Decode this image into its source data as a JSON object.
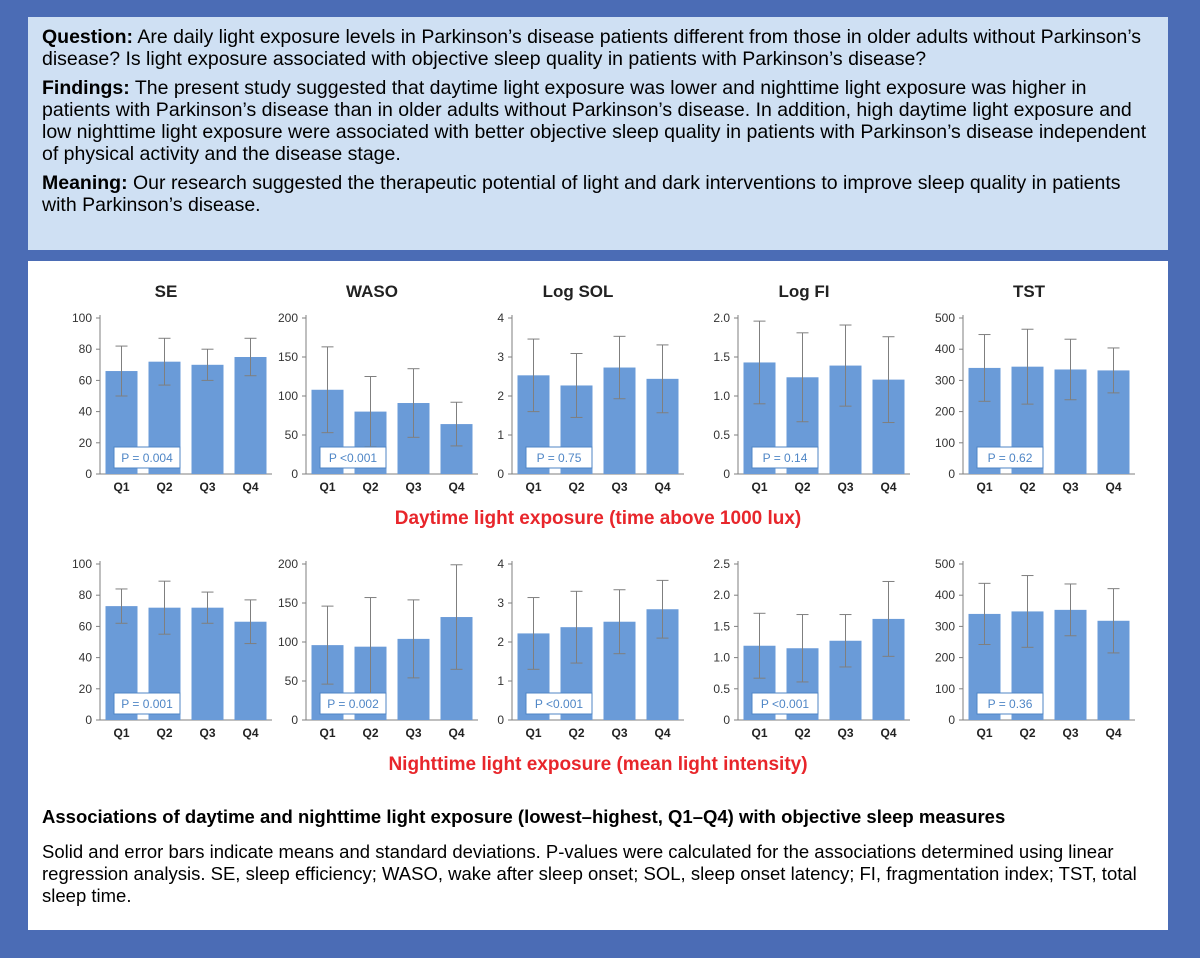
{
  "summary": {
    "question_label": "Question:",
    "question_text": "Are daily light exposure levels in Parkinson’s disease patients different from those in older adults without Parkinson’s disease? Is light exposure associated with objective sleep quality in patients with Parkinson’s disease?",
    "findings_label": "Findings:",
    "findings_text": "The present study suggested that daytime light exposure was lower and nighttime light exposure was higher in patients with Parkinson’s disease than in older adults without Parkinson’s disease. In addition, high daytime light exposure and low nighttime light exposure were associated with better objective sleep quality in patients with Parkinson’s disease independent of physical activity and the disease stage.",
    "meaning_label": "Meaning:",
    "meaning_text": "Our research suggested the therapeutic potential of light and dark interventions to improve sleep quality in patients with Parkinson’s disease."
  },
  "figure": {
    "caption_title": "Associations of daytime and nighttime light exposure (lowest–highest, Q1–Q4) with objective sleep measures",
    "caption_text": "Solid and error bars indicate means and standard deviations. P-values were calculated for the associations determined using linear regression analysis. SE, sleep efficiency; WASO, wake after sleep onset; SOL, sleep onset latency; FI, fragmentation index; TST, total sleep time."
  },
  "colors": {
    "bar": "#6a9bd8",
    "pbox_border": "#4f86c6",
    "pbox_text": "#4f86c6",
    "row_title": "#e8262b",
    "axis": "#7f7f7f",
    "error": "#7f7f7f"
  },
  "chart_data": [
    {
      "row_title": "Daytime light exposure (time above 1000 lux)",
      "panels": [
        {
          "type": "bar",
          "title": "SE",
          "categories": [
            "Q1",
            "Q2",
            "Q3",
            "Q4"
          ],
          "values": [
            66,
            72,
            70,
            75
          ],
          "errors": [
            16,
            15,
            10,
            12
          ],
          "ylim": [
            0,
            100
          ],
          "ticks": [
            "0",
            "20",
            "40",
            "60",
            "80",
            "100"
          ],
          "p_label": "P = 0.004"
        },
        {
          "type": "bar",
          "title": "WASO",
          "categories": [
            "Q1",
            "Q2",
            "Q3",
            "Q4"
          ],
          "values": [
            108,
            80,
            91,
            64
          ],
          "errors": [
            55,
            45,
            44,
            28
          ],
          "ylim": [
            0,
            200
          ],
          "ticks": [
            "0",
            "50",
            "100",
            "150",
            "200"
          ],
          "p_label": "P <0.001"
        },
        {
          "type": "bar",
          "title": "Log SOL",
          "categories": [
            "Q1",
            "Q2",
            "Q3",
            "Q4"
          ],
          "values": [
            2.53,
            2.27,
            2.73,
            2.44
          ],
          "errors": [
            0.93,
            0.82,
            0.8,
            0.87
          ],
          "ylim": [
            0,
            4
          ],
          "ticks": [
            "0",
            "1",
            "2",
            "3",
            "4"
          ],
          "p_label": "P = 0.75"
        },
        {
          "type": "bar",
          "title": "Log FI",
          "categories": [
            "Q1",
            "Q2",
            "Q3",
            "Q4"
          ],
          "values": [
            1.43,
            1.24,
            1.39,
            1.21
          ],
          "errors": [
            0.53,
            0.57,
            0.52,
            0.55
          ],
          "ylim": [
            0,
            2.0
          ],
          "ticks": [
            "0",
            "0.5",
            "1.0",
            "1.5",
            "2.0"
          ],
          "p_label": "P = 0.14"
        },
        {
          "type": "bar",
          "title": "TST",
          "categories": [
            "Q1",
            "Q2",
            "Q3",
            "Q4"
          ],
          "values": [
            340,
            344,
            335,
            332
          ],
          "errors": [
            107,
            120,
            97,
            72
          ],
          "ylim": [
            0,
            500
          ],
          "ticks": [
            "0",
            "100",
            "200",
            "300",
            "400",
            "500"
          ],
          "p_label": "P = 0.62"
        }
      ]
    },
    {
      "row_title": "Nighttime light exposure (mean light intensity)",
      "panels": [
        {
          "type": "bar",
          "title": "",
          "categories": [
            "Q1",
            "Q2",
            "Q3",
            "Q4"
          ],
          "values": [
            73,
            72,
            72,
            63
          ],
          "errors": [
            11,
            17,
            10,
            14
          ],
          "ylim": [
            0,
            100
          ],
          "ticks": [
            "0",
            "20",
            "40",
            "60",
            "80",
            "100"
          ],
          "p_label": "P = 0.001"
        },
        {
          "type": "bar",
          "title": "",
          "categories": [
            "Q1",
            "Q2",
            "Q3",
            "Q4"
          ],
          "values": [
            96,
            94,
            104,
            132
          ],
          "errors": [
            50,
            63,
            50,
            67
          ],
          "ylim": [
            0,
            200
          ],
          "ticks": [
            "0",
            "50",
            "100",
            "150",
            "200"
          ],
          "p_label": "P = 0.002"
        },
        {
          "type": "bar",
          "title": "",
          "categories": [
            "Q1",
            "Q2",
            "Q3",
            "Q4"
          ],
          "values": [
            2.22,
            2.38,
            2.52,
            2.84
          ],
          "errors": [
            0.92,
            0.92,
            0.82,
            0.74
          ],
          "ylim": [
            0,
            4
          ],
          "ticks": [
            "0",
            "1",
            "2",
            "3",
            "4"
          ],
          "p_label": "P <0.001"
        },
        {
          "type": "bar",
          "title": "",
          "categories": [
            "Q1",
            "Q2",
            "Q3",
            "Q4"
          ],
          "values": [
            1.19,
            1.15,
            1.27,
            1.62
          ],
          "errors": [
            0.52,
            0.54,
            0.42,
            0.6
          ],
          "ylim": [
            0,
            2.5
          ],
          "ticks": [
            "0",
            "0.5",
            "1.0",
            "1.5",
            "2.0",
            "2.5"
          ],
          "p_label": "P <0.001"
        },
        {
          "type": "bar",
          "title": "",
          "categories": [
            "Q1",
            "Q2",
            "Q3",
            "Q4"
          ],
          "values": [
            340,
            348,
            353,
            318
          ],
          "errors": [
            98,
            115,
            83,
            103
          ],
          "ylim": [
            0,
            500
          ],
          "ticks": [
            "0",
            "100",
            "200",
            "300",
            "400",
            "500"
          ],
          "p_label": "P = 0.36"
        }
      ]
    }
  ]
}
